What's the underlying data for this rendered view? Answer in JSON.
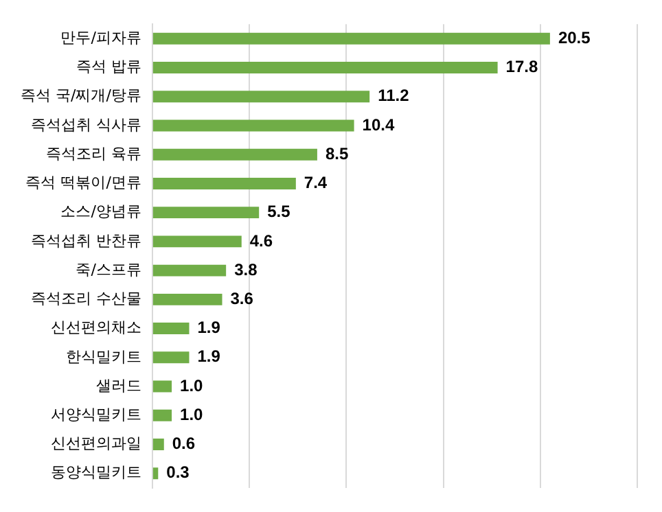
{
  "chart_data": {
    "type": "bar",
    "orientation": "horizontal",
    "categories": [
      "만두/피자류",
      "즉석 밥류",
      "즉석 국/찌개/탕류",
      "즉석섭취 식사류",
      "즉석조리 육류",
      "즉석 떡볶이/면류",
      "소스/양념류",
      "즉석섭취 반찬류",
      "죽/스프류",
      "즉석조리 수산물",
      "신선편의채소",
      "한식밀키트",
      "샐러드",
      "서양식밀키트",
      "신선편의과일",
      "동양식밀키트"
    ],
    "values": [
      20.5,
      17.8,
      11.2,
      10.4,
      8.5,
      7.4,
      5.5,
      4.6,
      3.8,
      3.6,
      1.9,
      1.9,
      1.0,
      1.0,
      0.6,
      0.3
    ],
    "value_labels": [
      "20.5",
      "17.8",
      "11.2",
      "10.4",
      "8.5",
      "7.4",
      "5.5",
      "4.6",
      "3.8",
      "3.6",
      "1.9",
      "1.9",
      "1.0",
      "1.0",
      "0.6",
      "0.3"
    ],
    "color": "#70ad47",
    "xlim": [
      0,
      25
    ],
    "xticks": [
      {
        "value": 0,
        "label": null
      },
      {
        "value": 5,
        "label": null
      },
      {
        "value": 10,
        "label": null
      },
      {
        "value": 15,
        "label": null
      },
      {
        "value": 20,
        "label": null
      },
      {
        "value": 25,
        "label": null
      }
    ],
    "grid": "x",
    "tick_labels": "y",
    "legend": false
  }
}
